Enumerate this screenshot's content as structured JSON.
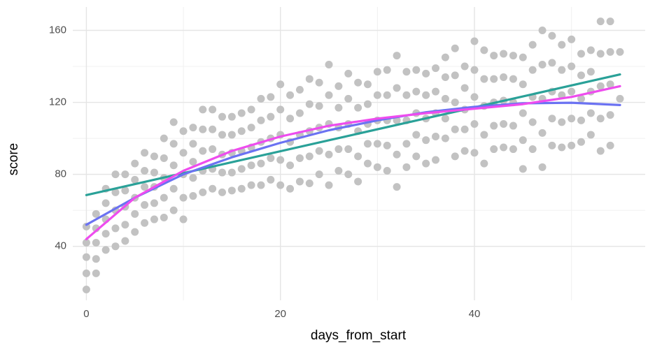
{
  "chart_data": {
    "type": "scatter",
    "xlabel": "days_from_start",
    "ylabel": "score",
    "xlim": [
      -1.4,
      57.6
    ],
    "ylim": [
      10,
      173
    ],
    "xticks": [
      0,
      20,
      40
    ],
    "yticks": [
      40,
      80,
      120,
      160
    ],
    "minor_xticks": [
      10,
      30,
      50
    ],
    "minor_yticks": [
      60,
      100,
      140
    ],
    "grid": true,
    "point_color": "#c2c2c2",
    "days": [
      0,
      1,
      2,
      3,
      4,
      5,
      6,
      7,
      8,
      9,
      10,
      11,
      12,
      13,
      14,
      15,
      16,
      17,
      18,
      19,
      20,
      21,
      22,
      23,
      24,
      25,
      26,
      27,
      28,
      29,
      30,
      31,
      32,
      33,
      34,
      35,
      36,
      37,
      38,
      39,
      40,
      41,
      42,
      43,
      44,
      45,
      46,
      47,
      48,
      49,
      50,
      51,
      52,
      53,
      54,
      55
    ],
    "scores": [
      [
        16,
        25,
        34,
        42,
        51
      ],
      [
        25,
        33,
        42,
        50,
        58
      ],
      [
        38,
        47,
        55,
        64,
        72
      ],
      [
        40,
        50,
        60,
        70,
        80
      ],
      [
        43,
        52,
        62,
        71,
        80
      ],
      [
        48,
        58,
        67,
        77,
        86
      ],
      [
        53,
        63,
        73,
        82,
        92
      ],
      [
        55,
        64,
        73,
        81,
        90
      ],
      [
        56,
        67,
        78,
        89,
        100
      ],
      [
        60,
        72,
        85,
        97,
        109
      ],
      [
        55,
        67,
        80,
        92,
        104
      ],
      [
        68,
        78,
        87,
        97,
        106
      ],
      [
        70,
        82,
        93,
        105,
        116
      ],
      [
        72,
        83,
        94,
        105,
        116
      ],
      [
        70,
        81,
        91,
        102,
        112
      ],
      [
        71,
        81,
        92,
        102,
        112
      ],
      [
        72,
        83,
        93,
        104,
        114
      ],
      [
        74,
        85,
        95,
        106,
        116
      ],
      [
        74,
        86,
        98,
        110,
        122
      ],
      [
        77,
        89,
        100,
        112,
        123
      ],
      [
        74,
        88,
        102,
        116,
        130
      ],
      [
        72,
        85,
        98,
        111,
        124
      ],
      [
        76,
        89,
        102,
        114,
        127
      ],
      [
        75,
        90,
        104,
        119,
        133
      ],
      [
        80,
        93,
        106,
        118,
        131
      ],
      [
        74,
        91,
        108,
        124,
        141
      ],
      [
        82,
        94,
        106,
        117,
        129
      ],
      [
        80,
        94,
        108,
        122,
        136
      ],
      [
        76,
        90,
        104,
        117,
        131
      ],
      [
        86,
        97,
        108,
        119,
        130
      ],
      [
        84,
        97,
        110,
        124,
        137
      ],
      [
        82,
        96,
        110,
        124,
        138
      ],
      [
        73,
        91,
        110,
        128,
        146
      ],
      [
        84,
        97,
        110,
        124,
        137
      ],
      [
        90,
        102,
        114,
        126,
        138
      ],
      [
        86,
        99,
        111,
        124,
        136
      ],
      [
        88,
        101,
        114,
        126,
        139
      ],
      [
        100,
        111,
        122,
        134,
        145
      ],
      [
        90,
        105,
        120,
        135,
        150
      ],
      [
        93,
        105,
        116,
        128,
        140
      ],
      [
        92,
        108,
        123,
        138,
        154
      ],
      [
        86,
        102,
        118,
        133,
        149
      ],
      [
        94,
        107,
        120,
        133,
        146
      ],
      [
        95,
        108,
        121,
        134,
        147
      ],
      [
        94,
        107,
        120,
        133,
        146
      ],
      [
        83,
        99,
        114,
        130,
        145
      ],
      [
        94,
        109,
        123,
        138,
        152
      ],
      [
        84,
        103,
        122,
        141,
        160
      ],
      [
        96,
        111,
        126,
        142,
        157
      ],
      [
        95,
        109,
        124,
        138,
        152
      ],
      [
        96,
        111,
        126,
        140,
        155
      ],
      [
        98,
        110,
        122,
        135,
        147
      ],
      [
        102,
        114,
        126,
        137,
        149
      ],
      [
        93,
        111,
        129,
        147,
        165
      ],
      [
        96,
        113,
        130,
        148,
        165
      ],
      [
        122,
        148
      ]
    ],
    "series": [
      {
        "color": "#2aa198",
        "x": [
          0,
          55
        ],
        "values": [
          68.5,
          135.5
        ]
      },
      {
        "color": "#6b72f2",
        "x": [
          0,
          5,
          10,
          15,
          20,
          25,
          30,
          35,
          40,
          45,
          50,
          55
        ],
        "values": [
          52,
          67,
          80,
          89.5,
          97.5,
          104.5,
          110,
          114.5,
          117.5,
          119.5,
          119.8,
          118.5
        ]
      },
      {
        "color": "#ee4cee",
        "x": [
          0,
          5,
          10,
          15,
          20,
          25,
          30,
          35,
          40,
          45,
          50,
          55
        ],
        "values": [
          44,
          67,
          82,
          93,
          101,
          107,
          111,
          114,
          116.5,
          119,
          123,
          129
        ]
      }
    ]
  }
}
